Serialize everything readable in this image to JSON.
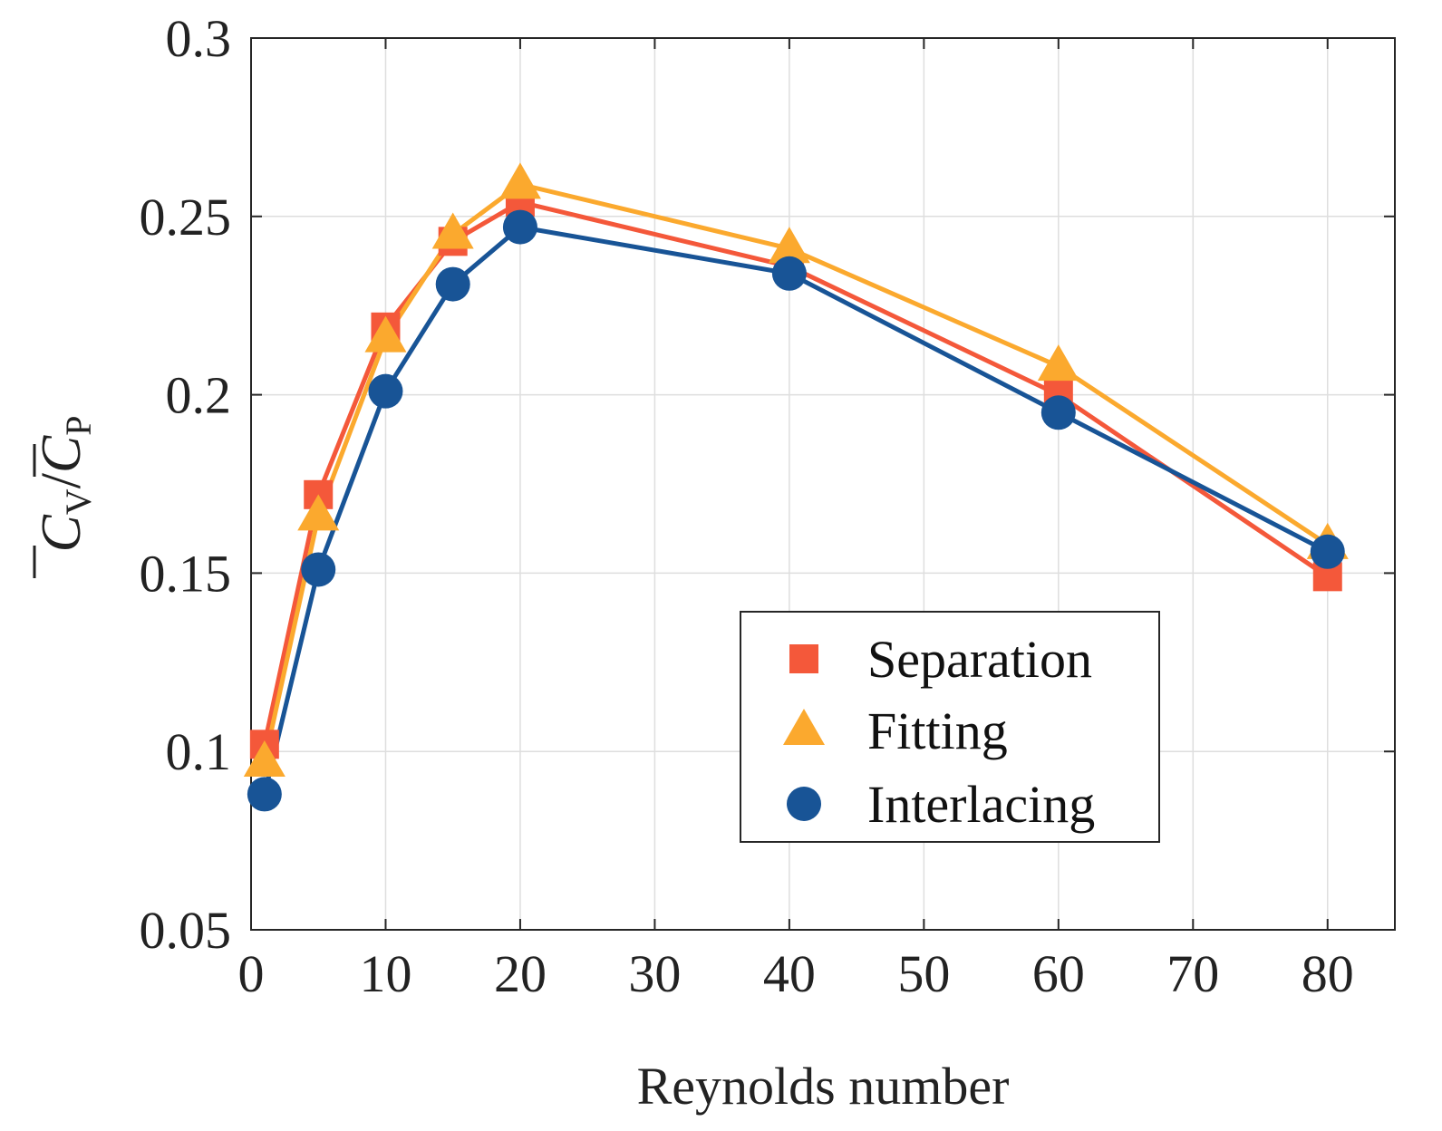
{
  "chart_data": {
    "type": "line",
    "title": "",
    "xlabel": "Reynolds number",
    "ylabel": {
      "numerator_symbol": "C",
      "numerator_subscript": "V",
      "separator": "/",
      "denominator_symbol": "C",
      "denominator_subscript": "P"
    },
    "xlim": [
      0,
      85
    ],
    "ylim": [
      0.05,
      0.3
    ],
    "xticks": [
      0,
      10,
      20,
      30,
      40,
      50,
      60,
      70,
      80
    ],
    "xtick_labels": [
      "0",
      "10",
      "20",
      "30",
      "40",
      "50",
      "60",
      "70",
      "80"
    ],
    "yticks": [
      0.05,
      0.1,
      0.15,
      0.2,
      0.25,
      0.3
    ],
    "ytick_labels": [
      "0.05",
      "0.1",
      "0.15",
      "0.2",
      "0.25",
      "0.3"
    ],
    "grid": true,
    "legend_position": "bottom-right",
    "x": [
      1,
      5,
      10,
      15,
      20,
      40,
      60,
      80
    ],
    "series": [
      {
        "name": "Separation",
        "marker": "square",
        "color": "#F4583A",
        "values": [
          0.102,
          0.172,
          0.219,
          0.243,
          0.254,
          0.236,
          0.2,
          0.149
        ]
      },
      {
        "name": "Fitting",
        "marker": "triangle",
        "color": "#FBA92E",
        "values": [
          0.097,
          0.166,
          0.216,
          0.245,
          0.259,
          0.241,
          0.208,
          0.158
        ]
      },
      {
        "name": "Interlacing",
        "marker": "circle",
        "color": "#185496",
        "values": [
          0.088,
          0.151,
          0.201,
          0.231,
          0.247,
          0.234,
          0.195,
          0.156
        ]
      }
    ]
  }
}
